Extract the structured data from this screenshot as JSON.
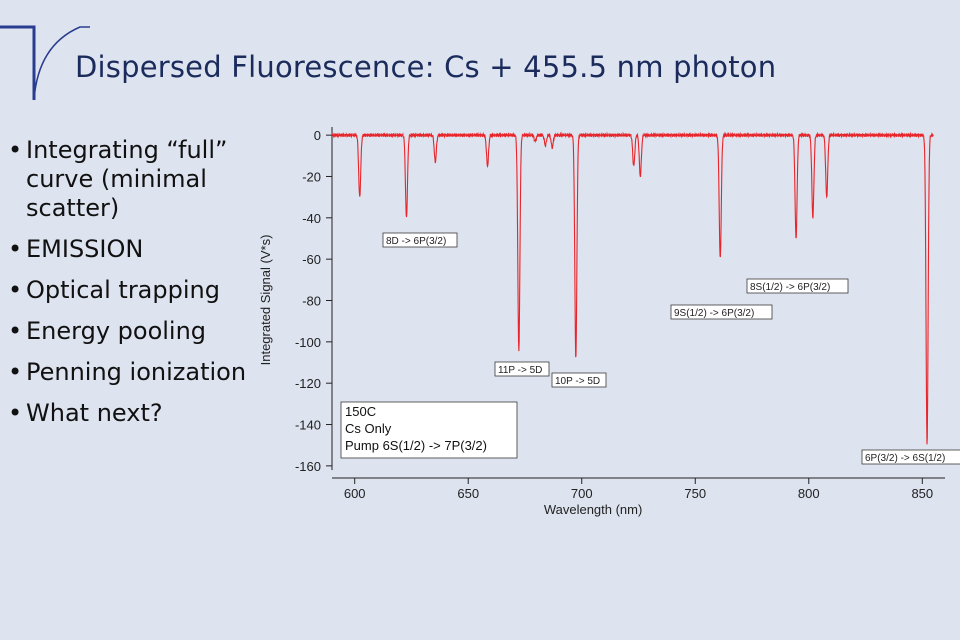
{
  "slide": {
    "title": "Dispersed Fluorescence: Cs + 455.5 nm photon",
    "bullets": [
      "Integrating “full” curve (minimal scatter)",
      "EMISSION",
      "Optical trapping",
      "Energy pooling",
      "Penning ionization",
      "What next?"
    ],
    "bullet_symbol": "•"
  },
  "colors": {
    "background": "#dde3ef",
    "title": "#1a2b5c",
    "accent": "#2a3c8f",
    "trace": "#e8252a"
  },
  "chart_data": {
    "type": "line",
    "xlabel": "Wavelength (nm)",
    "ylabel": "Integrated Signal (V*s)",
    "xlim": [
      590,
      860
    ],
    "ylim": [
      -162,
      2
    ],
    "x_ticks": [
      600,
      650,
      700,
      750,
      800,
      850
    ],
    "y_ticks": [
      0,
      -20,
      -40,
      -60,
      -80,
      -100,
      -120,
      -140,
      -160
    ],
    "baseline": 0,
    "grid": false,
    "series": [
      {
        "baseline": 0,
        "peaks": [
          {
            "x": 602.2,
            "y": -30
          },
          {
            "x": 622.8,
            "y": -40
          },
          {
            "x": 635.5,
            "y": -13
          },
          {
            "x": 658.5,
            "y": -15
          },
          {
            "x": 672.3,
            "y": -105
          },
          {
            "x": 679.5,
            "y": -3
          },
          {
            "x": 684.0,
            "y": -5
          },
          {
            "x": 687.0,
            "y": -6
          },
          {
            "x": 697.4,
            "y": -108
          },
          {
            "x": 722.9,
            "y": -15
          },
          {
            "x": 725.8,
            "y": -20
          },
          {
            "x": 761.0,
            "y": -60
          },
          {
            "x": 794.4,
            "y": -50
          },
          {
            "x": 801.8,
            "y": -40
          },
          {
            "x": 807.9,
            "y": -30
          },
          {
            "x": 852.1,
            "y": -150
          }
        ]
      }
    ],
    "annotations": [
      {
        "text": "8D -> 6P(3/2)"
      },
      {
        "text": "8S(1/2) -> 6P(3/2)"
      },
      {
        "text": "9S(1/2) -> 6P(3/2)"
      },
      {
        "text": "11P -> 5D"
      },
      {
        "text": "10P -> 5D"
      },
      {
        "text": "6P(3/2) -> 6S(1/2)"
      }
    ],
    "legend_box": [
      "150C",
      "Cs Only",
      "Pump 6S(1/2) -> 7P(3/2)"
    ]
  }
}
